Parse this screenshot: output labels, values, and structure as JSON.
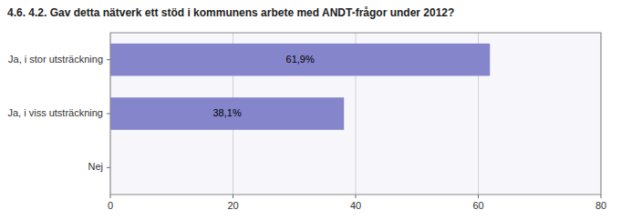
{
  "chart_data": {
    "type": "bar",
    "orientation": "horizontal",
    "title": "4.6. 4.2. Gav detta nätverk ett stöd i kommunens arbete med ANDT-frågor under 2012?",
    "categories": [
      "Ja, i stor utsträckning",
      "Ja, i viss utsträckning",
      "Nej"
    ],
    "values": [
      61.9,
      38.1,
      0
    ],
    "value_labels": [
      "61,9%",
      "38,1%",
      null
    ],
    "data_labels": true,
    "color": "#8585cc",
    "xlim": [
      0,
      80
    ],
    "xticks": [
      0,
      20,
      40,
      60,
      80
    ],
    "grid": true
  }
}
